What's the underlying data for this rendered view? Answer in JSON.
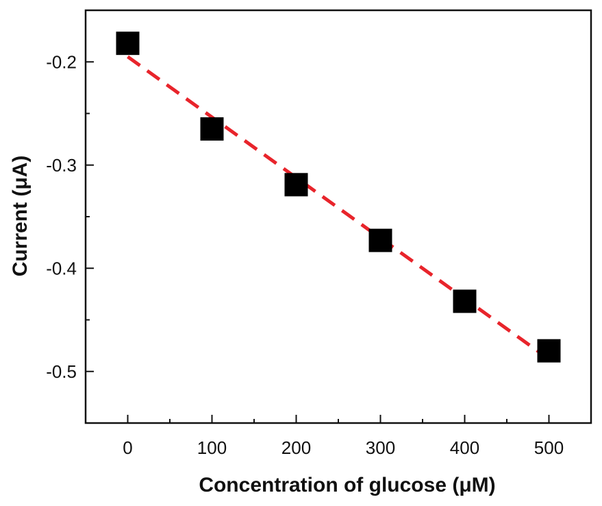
{
  "chart_data": {
    "type": "scatter",
    "title": "",
    "xlabel": "Concentration of glucose (μM)",
    "ylabel": "Current (μA)",
    "xlim": [
      -50,
      550
    ],
    "ylim": [
      -0.55,
      -0.15
    ],
    "x_ticks": [
      0,
      100,
      200,
      300,
      400,
      500
    ],
    "x_tick_labels": [
      "0",
      "100",
      "200",
      "300",
      "400",
      "500"
    ],
    "y_ticks": [
      -0.2,
      -0.3,
      -0.4,
      -0.5
    ],
    "y_tick_labels": [
      "-0.2",
      "-0.3",
      "-0.4",
      "-0.5"
    ],
    "grid": false,
    "series": [
      {
        "type": "scatter",
        "marker": "square",
        "color": "#000000",
        "x": [
          0,
          100,
          200,
          300,
          400,
          500
        ],
        "y": [
          -0.182,
          -0.265,
          -0.319,
          -0.373,
          -0.432,
          -0.48
        ]
      }
    ],
    "fit_line": {
      "style": "dashed",
      "color": "#e8242b",
      "x": [
        0,
        500
      ],
      "y": [
        -0.195,
        -0.488
      ]
    }
  }
}
